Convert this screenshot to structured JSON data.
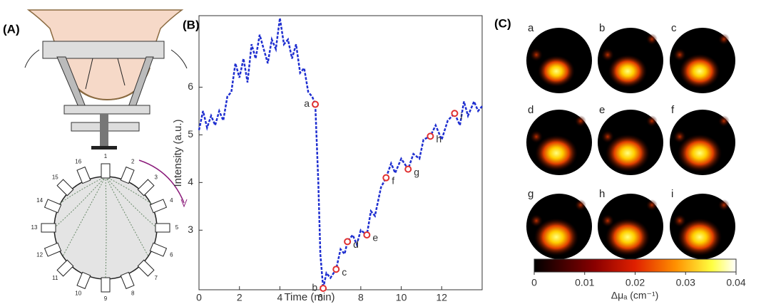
{
  "panel_labels": [
    "(A)",
    "(B)",
    "(C)"
  ],
  "diagram": {
    "probe_labels": [
      "1",
      "2",
      "3",
      "4",
      "5",
      "6",
      "7",
      "8",
      "9",
      "10",
      "11",
      "12",
      "13",
      "14",
      "15",
      "16"
    ]
  },
  "chart_data": {
    "type": "line",
    "xlabel": "Time (min)",
    "ylabel": "Intensity (a.u.)",
    "color": "#1f2fd0",
    "x": [
      0,
      0.2,
      0.4,
      0.6,
      0.8,
      1.0,
      1.2,
      1.4,
      1.6,
      1.8,
      2.0,
      2.2,
      2.4,
      2.6,
      2.8,
      3.0,
      3.2,
      3.4,
      3.6,
      3.8,
      4.0,
      4.2,
      4.4,
      4.6,
      4.8,
      5.0,
      5.2,
      5.4,
      5.6,
      5.75,
      5.9,
      6.0,
      6.14,
      6.3,
      6.5,
      6.78,
      7.0,
      7.2,
      7.34,
      7.6,
      7.8,
      8.0,
      8.3,
      8.5,
      8.7,
      9.0,
      9.25,
      9.5,
      9.7,
      10.0,
      10.34,
      10.6,
      10.9,
      11.1,
      11.44,
      11.7,
      12.0,
      12.3,
      12.64,
      12.9,
      13.1,
      13.3,
      13.6,
      13.8,
      14.0
    ],
    "values": [
      5.1,
      5.5,
      5.15,
      5.4,
      5.2,
      5.5,
      5.3,
      5.8,
      5.9,
      6.5,
      6.2,
      6.6,
      6.1,
      6.9,
      6.6,
      7.1,
      6.8,
      6.5,
      7.0,
      6.8,
      7.45,
      6.9,
      7.0,
      6.6,
      6.9,
      6.3,
      6.4,
      5.9,
      5.8,
      5.64,
      4.0,
      2.5,
      1.78,
      2.1,
      2.0,
      2.18,
      2.6,
      2.5,
      2.76,
      2.9,
      2.7,
      3.0,
      2.9,
      3.4,
      3.3,
      3.9,
      4.1,
      4.4,
      4.2,
      4.5,
      4.28,
      4.6,
      4.5,
      4.9,
      4.97,
      5.2,
      4.9,
      5.3,
      5.45,
      5.2,
      5.7,
      5.4,
      5.7,
      5.5,
      5.6
    ],
    "markers": {
      "labels": [
        "a",
        "b",
        "c",
        "d",
        "e",
        "f",
        "g",
        "h",
        "i"
      ],
      "x": [
        5.75,
        6.14,
        6.78,
        7.34,
        8.3,
        9.25,
        10.34,
        11.44,
        12.64
      ],
      "values": [
        5.64,
        1.78,
        2.18,
        2.76,
        2.9,
        4.1,
        4.28,
        4.97,
        5.45
      ],
      "color": "#e03030"
    },
    "xlim": [
      0,
      14
    ],
    "ylim": [
      1.75,
      7.5
    ],
    "xticks": [
      0,
      2,
      4,
      6,
      8,
      10,
      12
    ],
    "yticks": [
      3,
      4,
      5,
      6
    ]
  },
  "images": {
    "labels": [
      "a",
      "b",
      "c",
      "d",
      "e",
      "f",
      "g",
      "h",
      "i"
    ],
    "colorbar": {
      "label": "Δμₐ (cm⁻¹)",
      "xlim": [
        0,
        0.04
      ],
      "xticks": [
        0,
        0.01,
        0.02,
        0.03,
        0.04
      ]
    }
  }
}
